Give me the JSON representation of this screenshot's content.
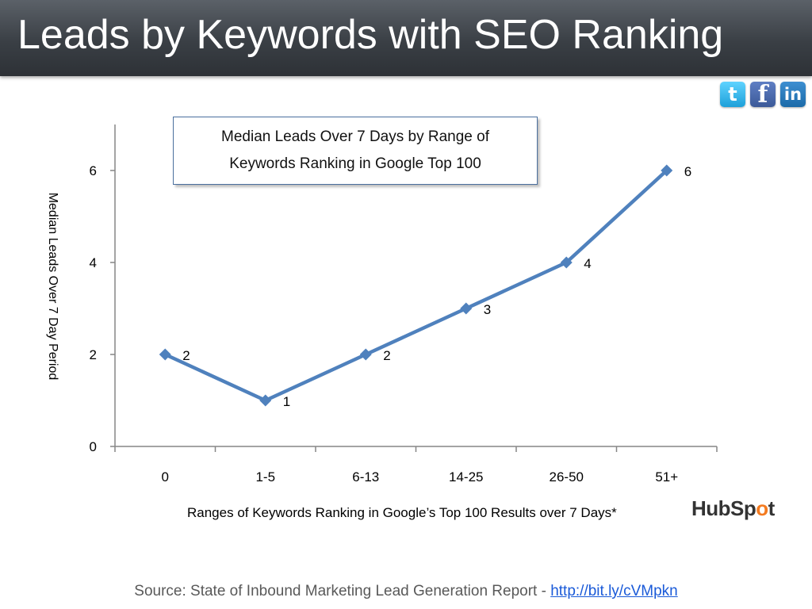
{
  "slide": {
    "title": "Leads by Keywords with SEO Ranking",
    "source_label": "Source: State of Inbound Marketing Lead Generation Report - ",
    "source_link": "http://bit.ly/cVMpkn",
    "brand": {
      "part1": "HubSp",
      "part2": "o",
      "part3": "t"
    }
  },
  "social": {
    "twitter_glyph": "t",
    "facebook_glyph": "f",
    "linkedin_glyph": "in"
  },
  "chart_data": {
    "type": "line",
    "title": "Median Leads Over 7 Days by Range of Keywords Ranking in Google Top 100",
    "title_line1": "Median Leads Over 7 Days by Range of",
    "title_line2": "Keywords Ranking in Google Top 100",
    "xlabel": "Ranges of Keywords Ranking in Google’s Top 100 Results over 7 Days*",
    "ylabel": "Median Leads Over 7 Day Period",
    "categories": [
      "0",
      "1-5",
      "6-13",
      "14-25",
      "26-50",
      "51+"
    ],
    "series": [
      {
        "values": [
          2,
          1,
          2,
          3,
          4,
          6
        ],
        "color": "#4f81bd"
      }
    ],
    "yticks": [
      0,
      2,
      4,
      6
    ],
    "ylim": [
      0,
      7
    ],
    "data_labels": true,
    "grid": false,
    "legend": "none",
    "colors": {
      "line": "#4f81bd",
      "axis": "#868686"
    }
  }
}
